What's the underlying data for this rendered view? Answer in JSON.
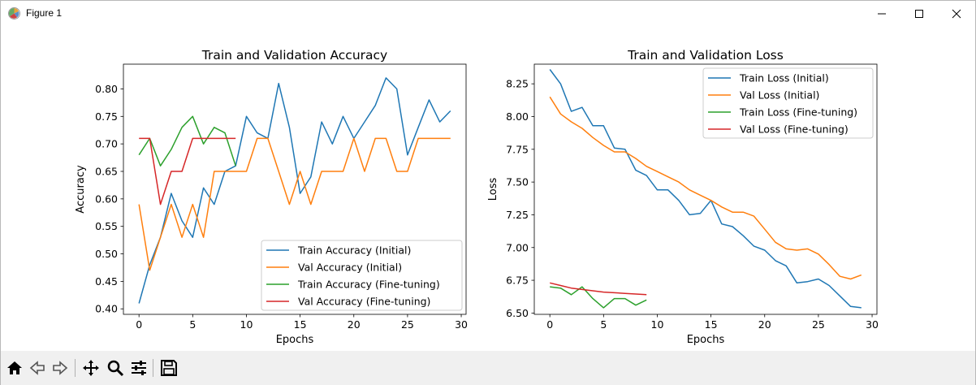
{
  "window": {
    "title": "Figure 1"
  },
  "toolbar": {
    "buttons": [
      "home-icon",
      "back-icon",
      "forward-icon",
      "pan-icon",
      "zoom-icon",
      "configure-icon",
      "save-icon"
    ]
  },
  "colors": {
    "blue": "#1f77b4",
    "orange": "#ff7f0e",
    "green": "#2ca02c",
    "red": "#d62728"
  },
  "chart_data": [
    {
      "type": "line",
      "title": "Train and Validation Accuracy",
      "xlabel": "Epochs",
      "ylabel": "Accuracy",
      "xlim": [
        -1.45,
        30.45
      ],
      "ylim": [
        0.39,
        0.845
      ],
      "xticks": [
        0,
        5,
        10,
        15,
        20,
        25,
        30
      ],
      "yticks": [
        0.4,
        0.45,
        0.5,
        0.55,
        0.6,
        0.65,
        0.7,
        0.75,
        0.8
      ],
      "ytick_labels": [
        "0.40",
        "0.45",
        "0.50",
        "0.55",
        "0.60",
        "0.65",
        "0.70",
        "0.75",
        "0.80"
      ],
      "legend_position": "lower right",
      "series": [
        {
          "name": "Train Accuracy (Initial)",
          "color": "#1f77b4",
          "x": [
            0,
            1,
            2,
            3,
            4,
            5,
            6,
            7,
            8,
            9,
            10,
            11,
            12,
            13,
            14,
            15,
            16,
            17,
            18,
            19,
            20,
            21,
            22,
            23,
            24,
            25,
            26,
            27,
            28,
            29
          ],
          "values": [
            0.41,
            0.48,
            0.53,
            0.61,
            0.56,
            0.53,
            0.62,
            0.59,
            0.65,
            0.66,
            0.75,
            0.72,
            0.71,
            0.81,
            0.73,
            0.61,
            0.64,
            0.74,
            0.7,
            0.75,
            0.71,
            0.74,
            0.77,
            0.82,
            0.8,
            0.68,
            0.73,
            0.78,
            0.74,
            0.76
          ]
        },
        {
          "name": "Val Accuracy (Initial)",
          "color": "#ff7f0e",
          "x": [
            0,
            1,
            2,
            3,
            4,
            5,
            6,
            7,
            8,
            9,
            10,
            11,
            12,
            13,
            14,
            15,
            16,
            17,
            18,
            19,
            20,
            21,
            22,
            23,
            24,
            25,
            26,
            27,
            28,
            29
          ],
          "values": [
            0.59,
            0.47,
            0.53,
            0.59,
            0.53,
            0.59,
            0.53,
            0.65,
            0.65,
            0.65,
            0.65,
            0.71,
            0.71,
            0.65,
            0.59,
            0.65,
            0.59,
            0.65,
            0.65,
            0.65,
            0.71,
            0.65,
            0.71,
            0.71,
            0.65,
            0.65,
            0.71,
            0.71,
            0.71,
            0.71
          ]
        },
        {
          "name": "Train Accuracy (Fine-tuning)",
          "color": "#2ca02c",
          "x": [
            0,
            1,
            2,
            3,
            4,
            5,
            6,
            7,
            8,
            9
          ],
          "values": [
            0.68,
            0.71,
            0.66,
            0.69,
            0.73,
            0.75,
            0.7,
            0.73,
            0.72,
            0.66
          ]
        },
        {
          "name": "Val Accuracy (Fine-tuning)",
          "color": "#d62728",
          "x": [
            0,
            1,
            2,
            3,
            4,
            5,
            6,
            7,
            8,
            9
          ],
          "values": [
            0.71,
            0.71,
            0.59,
            0.65,
            0.65,
            0.71,
            0.71,
            0.71,
            0.71,
            0.71
          ]
        }
      ]
    },
    {
      "type": "line",
      "title": "Train and Validation Loss",
      "xlabel": "Epochs",
      "ylabel": "Loss",
      "xlim": [
        -1.45,
        30.45
      ],
      "ylim": [
        6.49,
        8.4
      ],
      "xticks": [
        0,
        5,
        10,
        15,
        20,
        25,
        30
      ],
      "yticks": [
        6.5,
        6.75,
        7.0,
        7.25,
        7.5,
        7.75,
        8.0,
        8.25
      ],
      "ytick_labels": [
        "6.50",
        "6.75",
        "7.00",
        "7.25",
        "7.50",
        "7.75",
        "8.00",
        "8.25"
      ],
      "legend_position": "upper right",
      "series": [
        {
          "name": "Train Loss (Initial)",
          "color": "#1f77b4",
          "x": [
            0,
            1,
            2,
            3,
            4,
            5,
            6,
            7,
            8,
            9,
            10,
            11,
            12,
            13,
            14,
            15,
            16,
            17,
            18,
            19,
            20,
            21,
            22,
            23,
            24,
            25,
            26,
            27,
            28,
            29
          ],
          "values": [
            8.36,
            8.25,
            8.04,
            8.07,
            7.93,
            7.93,
            7.76,
            7.75,
            7.59,
            7.55,
            7.44,
            7.44,
            7.36,
            7.25,
            7.26,
            7.36,
            7.18,
            7.16,
            7.09,
            7.01,
            6.98,
            6.9,
            6.86,
            6.73,
            6.74,
            6.76,
            6.71,
            6.63,
            6.55,
            6.54
          ]
        },
        {
          "name": "Val Loss (Initial)",
          "color": "#ff7f0e",
          "x": [
            0,
            1,
            2,
            3,
            4,
            5,
            6,
            7,
            8,
            9,
            10,
            11,
            12,
            13,
            14,
            15,
            16,
            17,
            18,
            19,
            20,
            21,
            22,
            23,
            24,
            25,
            26,
            27,
            28,
            29
          ],
          "values": [
            8.15,
            8.02,
            7.96,
            7.91,
            7.84,
            7.78,
            7.73,
            7.73,
            7.68,
            7.62,
            7.58,
            7.54,
            7.5,
            7.44,
            7.4,
            7.36,
            7.31,
            7.27,
            7.27,
            7.24,
            7.14,
            7.04,
            6.99,
            6.98,
            6.99,
            6.95,
            6.87,
            6.78,
            6.76,
            6.79
          ]
        },
        {
          "name": "Train Loss (Fine-tuning)",
          "color": "#2ca02c",
          "x": [
            0,
            1,
            2,
            3,
            4,
            5,
            6,
            7,
            8,
            9
          ],
          "values": [
            6.7,
            6.69,
            6.64,
            6.7,
            6.61,
            6.54,
            6.61,
            6.61,
            6.56,
            6.6
          ]
        },
        {
          "name": "Val Loss (Fine-tuning)",
          "color": "#d62728",
          "x": [
            0,
            1,
            2,
            3,
            4,
            5,
            6,
            7,
            8,
            9
          ],
          "values": [
            6.73,
            6.71,
            6.69,
            6.68,
            6.67,
            6.66,
            6.655,
            6.65,
            6.645,
            6.64
          ]
        }
      ]
    }
  ]
}
